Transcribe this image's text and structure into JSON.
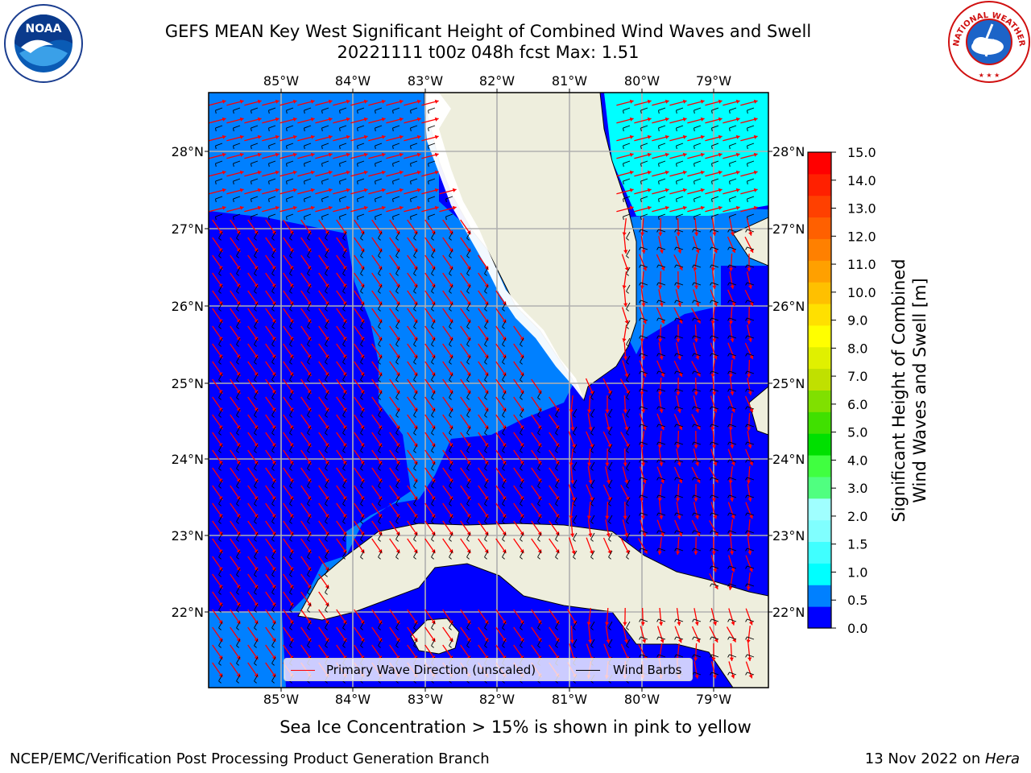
{
  "title": {
    "line1": "GEFS MEAN Key West Significant Height of Combined Wind Waves and Swell",
    "line2": "20221111 t00z 048h fcst    Max: 1.51"
  },
  "logos": {
    "left": "noaa-logo",
    "right": "nws-logo",
    "noaa_text": "NOAA",
    "nws_text": "NATIONAL WEATHER SERVICE"
  },
  "map": {
    "lon_labels": [
      "85°W",
      "84°W",
      "83°W",
      "82°W",
      "81°W",
      "80°W",
      "79°W"
    ],
    "lat_labels": [
      "28°N",
      "27°N",
      "26°N",
      "25°N",
      "24°N",
      "23°N",
      "22°N"
    ],
    "lon_values": [
      -85,
      -84,
      -83,
      -82,
      -81,
      -80,
      -79
    ],
    "lat_values": [
      28,
      27,
      26,
      25,
      24,
      23,
      22
    ],
    "land_color": "#eeeedd",
    "grid_color": "#b0b0b0",
    "wave_arrow_color": "#ff0000",
    "wind_barb_color": "#000000"
  },
  "legend": {
    "wave": "Primary Wave Direction (unscaled)",
    "barb": "Wind Barbs"
  },
  "colorbar": {
    "label": "Significant Height of Combined Wind Waves and Swell [m]",
    "label_line1": "Significant Height of Combined",
    "label_line2": "Wind Waves and Swell [m]",
    "ticks": [
      "15.0",
      "14.0",
      "13.0",
      "12.0",
      "11.0",
      "10.0",
      "9.0",
      "8.0",
      "7.0",
      "6.0",
      "5.0",
      "4.0",
      "3.0",
      "2.0",
      "1.5",
      "1.0",
      "0.5",
      "0.0"
    ],
    "colors_bottom_to_top": [
      "#0000ff",
      "#0080ff",
      "#00ffff",
      "#40ffff",
      "#80ffff",
      "#a0ffff",
      "#50ff80",
      "#40ff40",
      "#00e000",
      "#40e000",
      "#80e000",
      "#c0e000",
      "#e0f000",
      "#ffff00",
      "#ffe000",
      "#ffc000",
      "#ffa000",
      "#ff8000",
      "#ff6000",
      "#ff4000",
      "#ff2000",
      "#ff0000"
    ]
  },
  "footer": {
    "note": "Sea Ice Concentration > 15% is shown in pink to yellow",
    "credit": "NCEP/EMC/Verification Post Processing Product Generation Branch",
    "stamp_prefix": "13 Nov 2022 on ",
    "stamp_host": "Hera"
  }
}
